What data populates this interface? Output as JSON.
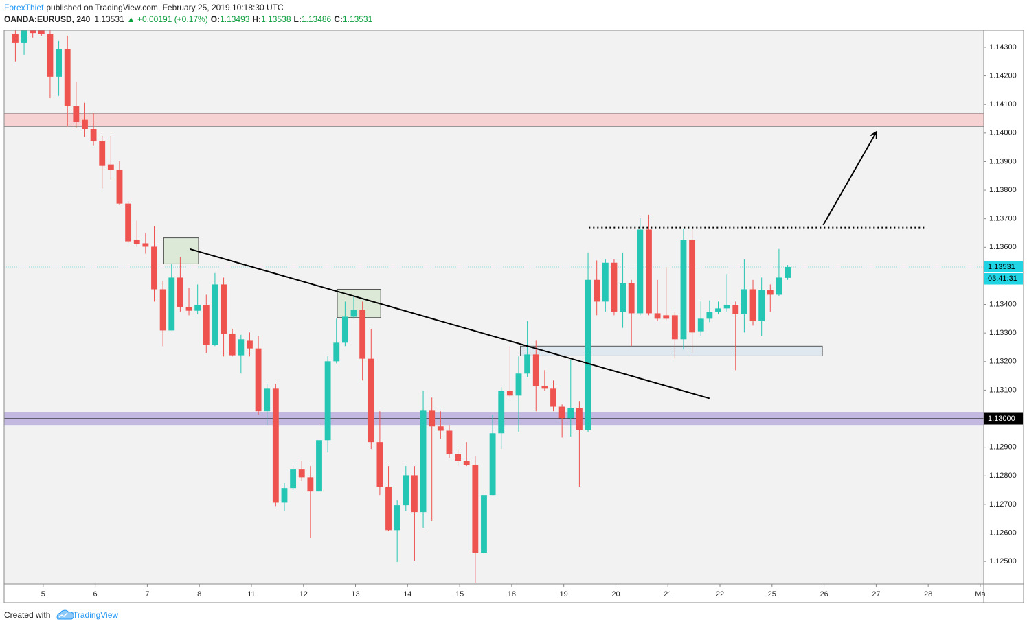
{
  "header": {
    "author": "ForexThief",
    "published": "published on TradingView.com, February 25, 2019 10:18:30 UTC",
    "symbol": "OANDA:EURUSD, 240",
    "last": "1.13531",
    "change": "▲ +0.00191 (+0.17%)",
    "ohlc": [
      {
        "key": "O:",
        "value": "1.13493"
      },
      {
        "key": "H:",
        "value": "1.13538"
      },
      {
        "key": "L:",
        "value": "1.13486"
      },
      {
        "key": "C:",
        "value": "1.13531"
      }
    ]
  },
  "footer": {
    "text": "Created with",
    "brand": "TradingView"
  },
  "chart_data": {
    "type": "candlestick",
    "up_color": "#26c6b4",
    "down_color": "#ef5350",
    "grid": false,
    "xlim": [
      -1.3,
      111.6
    ],
    "ylim": [
      1.12421,
      1.1436
    ],
    "xticks": [
      {
        "value": 3.2,
        "label": "5"
      },
      {
        "value": 9.2,
        "label": "6"
      },
      {
        "value": 15.2,
        "label": "7"
      },
      {
        "value": 21.2,
        "label": "8"
      },
      {
        "value": 27.2,
        "label": "11"
      },
      {
        "value": 33.2,
        "label": "12"
      },
      {
        "value": 39.2,
        "label": "13"
      },
      {
        "value": 45.2,
        "label": "14"
      },
      {
        "value": 51.2,
        "label": "15"
      },
      {
        "value": 57.2,
        "label": "18"
      },
      {
        "value": 63.2,
        "label": "19"
      },
      {
        "value": 69.2,
        "label": "20"
      },
      {
        "value": 75.2,
        "label": "21"
      },
      {
        "value": 81.2,
        "label": "22"
      },
      {
        "value": 87.2,
        "label": "25"
      },
      {
        "value": 93.2,
        "label": "26"
      },
      {
        "value": 99.2,
        "label": "27"
      },
      {
        "value": 105.2,
        "label": "28"
      },
      {
        "value": 111.2,
        "label": "Ma"
      }
    ],
    "yticks": [
      {
        "value": 1.125,
        "label": "1.12500"
      },
      {
        "value": 1.126,
        "label": "1.12600"
      },
      {
        "value": 1.127,
        "label": "1.12700"
      },
      {
        "value": 1.128,
        "label": "1.12800"
      },
      {
        "value": 1.129,
        "label": "1.12900"
      },
      {
        "value": 1.131,
        "label": "1.13100"
      },
      {
        "value": 1.132,
        "label": "1.13200"
      },
      {
        "value": 1.133,
        "label": "1.13300"
      },
      {
        "value": 1.134,
        "label": "1.13400"
      },
      {
        "value": 1.136,
        "label": "1.13600"
      },
      {
        "value": 1.137,
        "label": "1.13700"
      },
      {
        "value": 1.138,
        "label": "1.13800"
      },
      {
        "value": 1.139,
        "label": "1.13900"
      },
      {
        "value": 1.14,
        "label": "1.14000"
      },
      {
        "value": 1.141,
        "label": "1.14100"
      },
      {
        "value": 1.142,
        "label": "1.14200"
      },
      {
        "value": 1.143,
        "label": "1.14300"
      }
    ],
    "open": [
      1.14346,
      1.14317,
      1.1436,
      1.1436,
      1.14346,
      1.14197,
      1.14293,
      1.14094,
      1.14046,
      1.14014,
      1.13971,
      1.1389,
      1.1387,
      1.13753,
      1.13626,
      1.13614,
      1.13602,
      1.13453,
      1.13309,
      1.13494,
      1.1339,
      1.13378,
      1.13398,
      1.13258,
      1.1347,
      1.13297,
      1.13222,
      1.13273,
      1.13246,
      1.13026,
      1.13105,
      1.12706,
      1.12757,
      1.12822,
      1.12795,
      1.12745,
      1.12925,
      1.13201,
      1.13266,
      1.13357,
      1.13381,
      1.1321,
      1.12918,
      1.12762,
      1.1261,
      1.12697,
      1.12802,
      1.12673,
      1.13028,
      1.12973,
      1.12958,
      1.12877,
      1.12853,
      1.12838,
      1.12531,
      1.12733,
      1.12949,
      1.13098,
      1.13081,
      1.13158,
      1.13225,
      1.13114,
      1.13105,
      1.13042,
      1.13002,
      1.13038,
      1.12961,
      1.13486,
      1.1341,
      1.13546,
      1.13374,
      1.13474,
      1.13369,
      1.13662,
      1.13369,
      1.13362,
      1.13362,
      1.13278,
      1.13626,
      1.13306,
      1.1335,
      1.13374,
      1.13386,
      1.13398,
      1.13366,
      1.13453,
      1.13342,
      1.1345,
      1.13434,
      1.13493
    ],
    "high": [
      1.1436,
      1.1436,
      1.1436,
      1.1436,
      1.1436,
      1.14322,
      1.14341,
      1.14178,
      1.14106,
      1.1407,
      1.1399,
      1.1399,
      1.13902,
      1.13762,
      1.13693,
      1.1365,
      1.13674,
      1.13482,
      1.13542,
      1.13566,
      1.13458,
      1.1347,
      1.13434,
      1.1351,
      1.13494,
      1.13314,
      1.13294,
      1.13302,
      1.1329,
      1.13122,
      1.13122,
      1.12774,
      1.12834,
      1.12853,
      1.12834,
      1.12978,
      1.13218,
      1.1335,
      1.1341,
      1.13429,
      1.1341,
      1.13314,
      1.13026,
      1.12834,
      1.12714,
      1.12834,
      1.12834,
      1.13098,
      1.13074,
      1.13026,
      1.12978,
      1.12894,
      1.12918,
      1.1287,
      1.1275,
      1.13014,
      1.1311,
      1.13254,
      1.13218,
      1.13342,
      1.13273,
      1.1317,
      1.13134,
      1.1305,
      1.13206,
      1.13062,
      1.13582,
      1.13554,
      1.13558,
      1.13558,
      1.13582,
      1.13486,
      1.13702,
      1.13714,
      1.13486,
      1.1353,
      1.13374,
      1.13666,
      1.13662,
      1.1341,
      1.13414,
      1.1341,
      1.13506,
      1.1341,
      1.13558,
      1.13486,
      1.13494,
      1.1347,
      1.13594,
      1.13538
    ],
    "low": [
      1.1425,
      1.14274,
      1.14334,
      1.14341,
      1.14122,
      1.1413,
      1.14022,
      1.14017,
      1.13986,
      1.13957,
      1.13806,
      1.13837,
      1.1375,
      1.13614,
      1.13602,
      1.13578,
      1.1341,
      1.13254,
      1.13309,
      1.13374,
      1.13362,
      1.13366,
      1.1323,
      1.13254,
      1.13218,
      1.13218,
      1.13158,
      1.13218,
      1.13014,
      1.12978,
      1.12694,
      1.12678,
      1.1275,
      1.12781,
      1.12582,
      1.12738,
      1.12882,
      1.13194,
      1.13254,
      1.1335,
      1.13134,
      1.12894,
      1.12733,
      1.12606,
      1.12498,
      1.12678,
      1.12502,
      1.12618,
      1.12642,
      1.1293,
      1.12862,
      1.12834,
      1.12834,
      1.12426,
      1.12526,
      1.12733,
      1.12894,
      1.13074,
      1.12954,
      1.13146,
      1.13026,
      1.13098,
      1.13026,
      1.12934,
      1.12937,
      1.12762,
      1.12954,
      1.13362,
      1.13374,
      1.13362,
      1.13318,
      1.13254,
      1.13362,
      1.13362,
      1.13342,
      1.13345,
      1.13213,
      1.13242,
      1.1323,
      1.1329,
      1.13338,
      1.13366,
      1.13374,
      1.1317,
      1.13302,
      1.13326,
      1.1329,
      1.13374,
      1.13429,
      1.13486
    ],
    "close": [
      1.14317,
      1.1436,
      1.1435,
      1.14346,
      1.14197,
      1.14293,
      1.14094,
      1.14038,
      1.14014,
      1.13971,
      1.13885,
      1.1387,
      1.13753,
      1.13621,
      1.13611,
      1.13602,
      1.13453,
      1.13309,
      1.13494,
      1.1339,
      1.13378,
      1.13398,
      1.13258,
      1.1347,
      1.13297,
      1.13222,
      1.13278,
      1.13246,
      1.13026,
      1.13105,
      1.12706,
      1.12757,
      1.12822,
      1.12795,
      1.12745,
      1.12925,
      1.13201,
      1.13266,
      1.13357,
      1.13381,
      1.1321,
      1.12918,
      1.12762,
      1.1261,
      1.12697,
      1.12802,
      1.12673,
      1.13028,
      1.12973,
      1.12958,
      1.12877,
      1.12853,
      1.12838,
      1.12531,
      1.12733,
      1.12949,
      1.13098,
      1.13081,
      1.13158,
      1.13225,
      1.13114,
      1.13105,
      1.13042,
      1.13002,
      1.13038,
      1.12961,
      1.13486,
      1.1341,
      1.13546,
      1.13374,
      1.13474,
      1.13369,
      1.13662,
      1.13369,
      1.1335,
      1.1335,
      1.13278,
      1.13626,
      1.13302,
      1.1335,
      1.13374,
      1.13386,
      1.13398,
      1.13366,
      1.13453,
      1.13342,
      1.1345,
      1.13434,
      1.13494,
      1.13531
    ],
    "zones": [
      {
        "from": 1.1407,
        "to": 1.14024,
        "color": "#f6d2d2",
        "edge": "#000000"
      },
      {
        "from": 1.13023,
        "to": 1.12978,
        "color": "#c3b8e0",
        "edge": null
      }
    ],
    "boxes": [
      {
        "x": [
          17.1,
          21.1
        ],
        "y": [
          1.13633,
          1.13542
        ],
        "color": "#d8e8d2"
      },
      {
        "x": [
          37.1,
          42.1
        ],
        "y": [
          1.13453,
          1.13354
        ],
        "color": "#d8e8d2"
      },
      {
        "x": [
          58.2,
          93.0
        ],
        "y": [
          1.13254,
          1.1322
        ],
        "color": "#dde6ef"
      }
    ],
    "lines": [
      {
        "x": [
          20.1,
          80.0
        ],
        "y": [
          1.13594,
          1.13071
        ],
        "style": "solid"
      },
      {
        "x": [
          66.1,
          105.1
        ],
        "y": [
          1.13669,
          1.13669
        ],
        "style": "dotted"
      },
      {
        "x": [
          93.1,
          99.2
        ],
        "y": [
          1.13678,
          1.14002
        ],
        "style": "arrow"
      }
    ],
    "levels": [
      {
        "value": 1.13,
        "label": "1.13000",
        "color": "#000000",
        "line": "#000000"
      },
      {
        "value": 1.13531,
        "label": "1.13531",
        "color": "#21d4e4",
        "line": "#8fdde6",
        "countdown": "03:41:31"
      }
    ]
  }
}
